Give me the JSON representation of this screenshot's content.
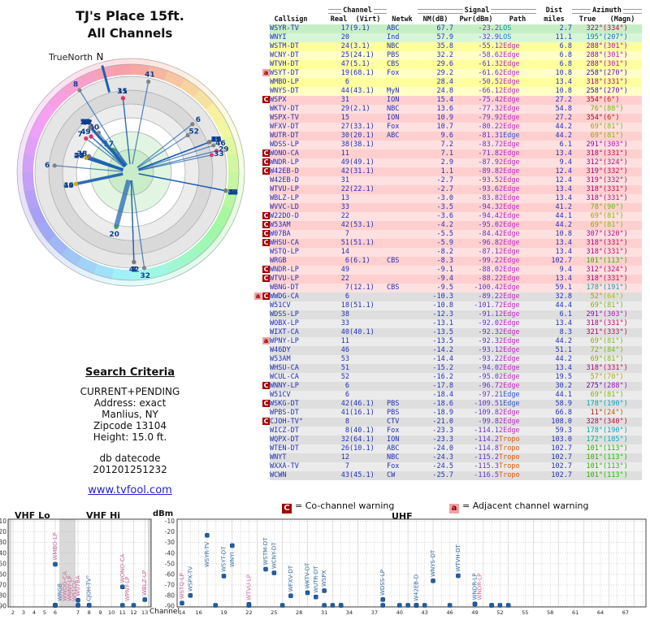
{
  "title": {
    "line1": "TJ's Place 15ft.",
    "line2": "All Channels"
  },
  "radar": {
    "true_north_label": "TrueNorth",
    "north_label": "N"
  },
  "search": {
    "heading": "Search Criteria",
    "lines": [
      "CURRENT+PENDING",
      "Address: exact",
      "Manlius, NY",
      "Zipcode 13104",
      "Height: 15.0 ft."
    ],
    "datecode_label": "db datecode",
    "datecode": "201201251232"
  },
  "link_text": "www.tvfool.com",
  "legend": {
    "co": {
      "symbol": "C",
      "text": "= Co-channel warning"
    },
    "adj": {
      "symbol": "a",
      "text": "= Adjacent channel warning"
    }
  },
  "table": {
    "groups": [
      "Channel",
      "Signal",
      "Dist",
      "Azimuth"
    ],
    "columns": [
      "Callsign",
      "Real",
      "(Virt)",
      "Netwk",
      "NM(dB)",
      "Pwr(dBm)",
      "Path",
      "miles",
      "True",
      "(Magn)"
    ]
  },
  "chart": {
    "labels": {
      "vhf_lo": "VHF Lo",
      "vhf_hi": "VHF Hi",
      "uhf": "UHF",
      "dbm": "dBm",
      "channel": "Channel"
    },
    "y_ticks": [
      -10,
      -20,
      -30,
      -40,
      -50,
      -60,
      -70,
      -80,
      -90
    ],
    "vhf_x_ticks": [
      2,
      3,
      4,
      5,
      6,
      7,
      8,
      9,
      10,
      11,
      12,
      13
    ],
    "uhf_x_ticks": [
      14,
      16,
      19,
      22,
      25,
      28,
      31,
      34,
      37,
      40,
      43,
      46,
      49,
      52,
      55,
      58,
      61,
      64,
      67
    ]
  },
  "colors": {
    "zones": {
      "green": [
        "#c6eec6",
        "#d8f5d8"
      ],
      "yellow": [
        "#ffff9e",
        "#ffffc6"
      ],
      "pink": [
        "#ffcfcf",
        "#ffe0e0"
      ],
      "gray": [
        "#dedede",
        "#ebebeb"
      ]
    },
    "zone_dots": {
      "green": "#2f9e44",
      "yellow": "#d4b106",
      "pink": "#d6336c",
      "gray": "#7a7a7a"
    },
    "path": {
      "LOS": "#0b87c4",
      "1Edge": "#2f54d6",
      "2Edge": "#c22bc2",
      "Tropo": "#e8590c"
    },
    "marker_co": "#a40000",
    "marker_adj": "#f2a1a1",
    "wedge": "#1d5fb0",
    "bar": "#1f5fa0",
    "callsign": "#2230b8",
    "value_blue": "#2230b8",
    "value_purple": "#6633cc"
  },
  "chart_data": {
    "type": [
      "polar-scatter",
      "scatter"
    ],
    "radar_plot": {
      "title": "TJ's Place 15ft. All Channels",
      "angle_field": "az",
      "radius_field": "dist",
      "radius_rings_miles": [
        2,
        5,
        10,
        20,
        40,
        80
      ],
      "label_field": "real"
    },
    "signal_plot": {
      "x_field": "real",
      "y_field": "pwr",
      "ylabel": "dBm",
      "xlabel": "Channel",
      "ylim": [
        -90,
        -10
      ],
      "panels": {
        "vhf": [
          2,
          13
        ],
        "uhf": [
          14,
          69
        ]
      }
    },
    "stations": [
      {
        "m": "",
        "call": "WSYR-TV",
        "real": 17,
        "virt": "(9.1)",
        "net": "ABC",
        "nm": "67.7",
        "pwr": "-23.2",
        "path": "LOS",
        "dist": "2.7",
        "az": 322,
        "mag": 334,
        "zone": "green"
      },
      {
        "m": "",
        "call": "WNYI",
        "real": 20,
        "virt": "",
        "net": "Ind",
        "nm": "57.9",
        "pwr": "-32.9",
        "path": "LOS",
        "dist": "11.1",
        "az": 195,
        "mag": 207,
        "zone": "green"
      },
      {
        "m": "",
        "call": "WSTM-DT",
        "real": 24,
        "virt": "(3.1)",
        "net": "NBC",
        "nm": "35.8",
        "pwr": "-55.1",
        "path": "2Edge",
        "dist": "6.8",
        "az": 288,
        "mag": 301,
        "zone": "yellow"
      },
      {
        "m": "",
        "call": "WCNY-DT",
        "real": 25,
        "virt": "(24.1)",
        "net": "PBS",
        "nm": "32.2",
        "pwr": "-58.6",
        "path": "2Edge",
        "dist": "6.8",
        "az": 288,
        "mag": 301,
        "zone": "yellow"
      },
      {
        "m": "",
        "call": "WTVH-DT",
        "real": 47,
        "virt": "(5.1)",
        "net": "CBS",
        "nm": "29.6",
        "pwr": "-61.3",
        "path": "2Edge",
        "dist": "6.8",
        "az": 288,
        "mag": 301,
        "zone": "yellow"
      },
      {
        "m": "a",
        "call": "WSYT-DT",
        "real": 19,
        "virt": "(68.1)",
        "net": "Fox",
        "nm": "29.2",
        "pwr": "-61.6",
        "path": "2Edge",
        "dist": "10.8",
        "az": 258,
        "mag": 270,
        "zone": "yellow"
      },
      {
        "m": "",
        "call": "WMBO-LP",
        "real": 6,
        "virt": "",
        "net": "",
        "nm": "28.4",
        "pwr": "-50.5",
        "path": "2Edge",
        "dist": "13.4",
        "az": 318,
        "mag": 331,
        "zone": "yellow"
      },
      {
        "m": "",
        "call": "WNYS-DT",
        "real": 44,
        "virt": "(43.1)",
        "net": "MyN",
        "nm": "24.8",
        "pwr": "-66.1",
        "path": "2Edge",
        "dist": "10.8",
        "az": 258,
        "mag": 270,
        "zone": "yellow"
      },
      {
        "m": "C",
        "call": "WSPX",
        "real": 31,
        "virt": "",
        "net": "ION",
        "nm": "15.4",
        "pwr": "-75.4",
        "path": "2Edge",
        "dist": "27.2",
        "az": 354,
        "mag": 6,
        "zone": "pink"
      },
      {
        "m": "",
        "call": "WKTV-DT",
        "real": 29,
        "virt": "(2.1)",
        "net": "NBC",
        "nm": "13.6",
        "pwr": "-77.3",
        "path": "2Edge",
        "dist": "54.8",
        "az": 76,
        "mag": 88,
        "zone": "pink"
      },
      {
        "m": "",
        "call": "WSPX-TV",
        "real": 15,
        "virt": "",
        "net": "ION",
        "nm": "10.9",
        "pwr": "-79.9",
        "path": "2Edge",
        "dist": "27.2",
        "az": 354,
        "mag": 6,
        "zone": "pink"
      },
      {
        "m": "",
        "call": "WFXV-DT",
        "real": 27,
        "virt": "(33.1)",
        "net": "Fox",
        "nm": "10.7",
        "pwr": "-80.2",
        "path": "2Edge",
        "dist": "44.2",
        "az": 69,
        "mag": 81,
        "zone": "pink"
      },
      {
        "m": "",
        "call": "WUTR-DT",
        "real": 30,
        "virt": "(20.1)",
        "net": "ABC",
        "nm": "9.6",
        "pwr": "-81.3",
        "path": "1Edge",
        "dist": "44.2",
        "az": 69,
        "mag": 81,
        "zone": "pink"
      },
      {
        "m": "",
        "call": "WDSS-LP",
        "real": 38,
        "virt": "(38.1)",
        "net": "",
        "nm": "7.2",
        "pwr": "-83.7",
        "path": "2Edge",
        "dist": "6.1",
        "az": 291,
        "mag": 303,
        "zone": "pink"
      },
      {
        "m": "C",
        "call": "WONO-CA",
        "real": 11,
        "virt": "",
        "net": "",
        "nm": "7.1",
        "pwr": "-71.8",
        "path": "2Edge",
        "dist": "13.4",
        "az": 318,
        "mag": 331,
        "zone": "pink"
      },
      {
        "m": "C",
        "call": "WNDR-LP",
        "real": 49,
        "virt": "(49.1)",
        "net": "",
        "nm": "2.9",
        "pwr": "-87.9",
        "path": "2Edge",
        "dist": "9.4",
        "az": 312,
        "mag": 324,
        "zone": "pink"
      },
      {
        "m": "C",
        "call": "W42EB-D",
        "real": 42,
        "virt": "(31.1)",
        "net": "",
        "nm": "1.1",
        "pwr": "-89.8",
        "path": "2Edge",
        "dist": "12.4",
        "az": 319,
        "mag": 332,
        "zone": "pink"
      },
      {
        "m": "",
        "call": "W42EB-D",
        "real": 31,
        "virt": "",
        "net": "",
        "nm": "-2.7",
        "pwr": "-93.5",
        "path": "2Edge",
        "dist": "12.4",
        "az": 319,
        "mag": 332,
        "zone": "pink"
      },
      {
        "m": "",
        "call": "WTVU-LP",
        "real": 22,
        "virt": "(22.1)",
        "net": "",
        "nm": "-2.7",
        "pwr": "-93.6",
        "path": "2Edge",
        "dist": "13.4",
        "az": 318,
        "mag": 331,
        "zone": "pink"
      },
      {
        "m": "",
        "call": "WBLZ-LP",
        "real": 13,
        "virt": "",
        "net": "",
        "nm": "-3.0",
        "pwr": "-83.8",
        "path": "2Edge",
        "dist": "13.4",
        "az": 318,
        "mag": 331,
        "zone": "pink"
      },
      {
        "m": "",
        "call": "WVVC-LD",
        "real": 33,
        "virt": "",
        "net": "",
        "nm": "-3.5",
        "pwr": "-94.3",
        "path": "2Edge",
        "dist": "41.2",
        "az": 78,
        "mag": 90,
        "zone": "pink"
      },
      {
        "m": "C",
        "call": "W22DO-D",
        "real": 22,
        "virt": "",
        "net": "",
        "nm": "-3.6",
        "pwr": "-94.4",
        "path": "2Edge",
        "dist": "44.1",
        "az": 69,
        "mag": 81,
        "zone": "pink"
      },
      {
        "m": "C",
        "call": "W53AM",
        "real": 42,
        "virt": "(53.1)",
        "net": "",
        "nm": "-4.2",
        "pwr": "-95.0",
        "path": "2Edge",
        "dist": "44.2",
        "az": 69,
        "mag": 81,
        "zone": "pink"
      },
      {
        "m": "C",
        "call": "W07BA",
        "real": 7,
        "virt": "",
        "net": "",
        "nm": "-5.5",
        "pwr": "-84.4",
        "path": "2Edge",
        "dist": "10.8",
        "az": 307,
        "mag": 320,
        "zone": "pink"
      },
      {
        "m": "C",
        "call": "WHSU-CA",
        "real": 51,
        "virt": "(51.1)",
        "net": "",
        "nm": "-5.9",
        "pwr": "-96.8",
        "path": "2Edge",
        "dist": "13.4",
        "az": 318,
        "mag": 331,
        "zone": "pink"
      },
      {
        "m": "",
        "call": "WSTQ-LP",
        "real": 14,
        "virt": "",
        "net": "",
        "nm": "-8.2",
        "pwr": "-87.1",
        "path": "2Edge",
        "dist": "13.4",
        "az": 318,
        "mag": 331,
        "zone": "pink"
      },
      {
        "m": "",
        "call": "WRGB",
        "real": 6,
        "virt": "(6.1)",
        "net": "CBS",
        "nm": "-8.3",
        "pwr": "-99.2",
        "path": "2Edge",
        "dist": "102.7",
        "az": 101,
        "mag": 113,
        "zone": "pink"
      },
      {
        "m": "C",
        "call": "WNDR-LP",
        "real": 49,
        "virt": "",
        "net": "",
        "nm": "-9.1",
        "pwr": "-88.0",
        "path": "2Edge",
        "dist": "9.4",
        "az": 312,
        "mag": 324,
        "zone": "pink"
      },
      {
        "m": "C",
        "call": "WTVU-LP",
        "real": 22,
        "virt": "",
        "net": "",
        "nm": "-9.4",
        "pwr": "-88.2",
        "path": "2Edge",
        "dist": "13.4",
        "az": 318,
        "mag": 331,
        "zone": "pink"
      },
      {
        "m": "",
        "call": "WBNG-DT",
        "real": 7,
        "virt": "(12.1)",
        "net": "CBS",
        "nm": "-9.5",
        "pwr": "-100.4",
        "path": "2Edge",
        "dist": "59.1",
        "az": 178,
        "mag": 191,
        "zone": "pink"
      },
      {
        "m": "aC",
        "call": "WWDG-CA",
        "real": 6,
        "virt": "",
        "net": "",
        "nm": "-10.3",
        "pwr": "-89.2",
        "path": "2Edge",
        "dist": "32.8",
        "az": 52,
        "mag": 64,
        "zone": "gray"
      },
      {
        "m": "",
        "call": "W51CV",
        "real": 18,
        "virt": "(51.1)",
        "net": "",
        "nm": "-10.8",
        "pwr": "-101.7",
        "path": "2Edge",
        "dist": "44.4",
        "az": 69,
        "mag": 81,
        "zone": "gray"
      },
      {
        "m": "",
        "call": "WDSS-LP",
        "real": 38,
        "virt": "",
        "net": "",
        "nm": "-12.3",
        "pwr": "-91.1",
        "path": "2Edge",
        "dist": "6.1",
        "az": 291,
        "mag": 303,
        "zone": "gray"
      },
      {
        "m": "",
        "call": "WOBX-LP",
        "real": 33,
        "virt": "",
        "net": "",
        "nm": "-13.1",
        "pwr": "-92.0",
        "path": "2Edge",
        "dist": "13.4",
        "az": 318,
        "mag": 331,
        "zone": "gray"
      },
      {
        "m": "",
        "call": "WIXT-CA",
        "real": 40,
        "virt": "(40.1)",
        "net": "",
        "nm": "-13.5",
        "pwr": "-92.3",
        "path": "2Edge",
        "dist": "8.3",
        "az": 321,
        "mag": 333,
        "zone": "gray"
      },
      {
        "m": "a",
        "call": "WPNY-LP",
        "real": 11,
        "virt": "",
        "net": "",
        "nm": "-13.5",
        "pwr": "-92.3",
        "path": "2Edge",
        "dist": "44.2",
        "az": 69,
        "mag": 81,
        "zone": "gray"
      },
      {
        "m": "",
        "call": "W46DY",
        "real": 46,
        "virt": "",
        "net": "",
        "nm": "-14.2",
        "pwr": "-93.1",
        "path": "2Edge",
        "dist": "51.1",
        "az": 72,
        "mag": 84,
        "zone": "gray"
      },
      {
        "m": "",
        "call": "W53AM",
        "real": 53,
        "virt": "",
        "net": "",
        "nm": "-14.4",
        "pwr": "-93.2",
        "path": "2Edge",
        "dist": "44.2",
        "az": 69,
        "mag": 81,
        "zone": "gray"
      },
      {
        "m": "",
        "call": "WHSU-CA",
        "real": 51,
        "virt": "",
        "net": "",
        "nm": "-15.2",
        "pwr": "-94.0",
        "path": "2Edge",
        "dist": "13.4",
        "az": 318,
        "mag": 331,
        "zone": "gray"
      },
      {
        "m": "",
        "call": "WCUL-CA",
        "real": 52,
        "virt": "",
        "net": "",
        "nm": "-16.2",
        "pwr": "-95.0",
        "path": "2Edge",
        "dist": "19.5",
        "az": 57,
        "mag": 70,
        "zone": "gray"
      },
      {
        "m": "C",
        "call": "WNNY-LP",
        "real": 6,
        "virt": "",
        "net": "",
        "nm": "-17.8",
        "pwr": "-96.7",
        "path": "2Edge",
        "dist": "30.2",
        "az": 275,
        "mag": 288,
        "zone": "gray"
      },
      {
        "m": "",
        "call": "W51CV",
        "real": 6,
        "virt": "",
        "net": "",
        "nm": "-18.4",
        "pwr": "-97.2",
        "path": "1Edge",
        "dist": "44.1",
        "az": 69,
        "mag": 81,
        "zone": "gray"
      },
      {
        "m": "C",
        "call": "WSKG-DT",
        "real": 42,
        "virt": "(46.1)",
        "net": "PBS",
        "nm": "-18.6",
        "pwr": "-109.5",
        "path": "1Edge",
        "dist": "58.9",
        "az": 178,
        "mag": 190,
        "zone": "gray"
      },
      {
        "m": "",
        "call": "WPBS-DT",
        "real": 41,
        "virt": "(16.1)",
        "net": "PBS",
        "nm": "-18.9",
        "pwr": "-109.8",
        "path": "2Edge",
        "dist": "66.8",
        "az": 11,
        "mag": 24,
        "zone": "gray"
      },
      {
        "m": "C",
        "call": "CJOH-TV°",
        "real": 8,
        "virt": "",
        "net": "CTV",
        "nm": "-21.0",
        "pwr": "-99.8",
        "path": "2Edge",
        "dist": "108.0",
        "az": 328,
        "mag": 340,
        "zone": "gray"
      },
      {
        "m": "",
        "call": "WICZ-DT",
        "real": 8,
        "virt": "(40.1)",
        "net": "Fox",
        "nm": "-23.3",
        "pwr": "-114.1",
        "path": "2Edge",
        "dist": "59.3",
        "az": 178,
        "mag": 190,
        "zone": "gray"
      },
      {
        "m": "",
        "call": "WQPX-DT",
        "real": 32,
        "virt": "(64.1)",
        "net": "ION",
        "nm": "-23.3",
        "pwr": "-114.2",
        "path": "Tropo",
        "dist": "103.0",
        "az": 172,
        "mag": 185,
        "zone": "gray"
      },
      {
        "m": "",
        "call": "WTEN-DT",
        "real": 26,
        "virt": "(10.1)",
        "net": "ABC",
        "nm": "-24.0",
        "pwr": "-114.8",
        "path": "Tropo",
        "dist": "102.7",
        "az": 101,
        "mag": 113,
        "zone": "gray"
      },
      {
        "m": "",
        "call": "WNYT",
        "real": 12,
        "virt": "",
        "net": "NBC",
        "nm": "-24.3",
        "pwr": "-115.2",
        "path": "Tropo",
        "dist": "102.7",
        "az": 101,
        "mag": 113,
        "zone": "gray"
      },
      {
        "m": "",
        "call": "WXXA-TV",
        "real": 7,
        "virt": "",
        "net": "Fox",
        "nm": "-24.5",
        "pwr": "-115.3",
        "path": "Tropo",
        "dist": "102.7",
        "az": 101,
        "mag": 113,
        "zone": "gray"
      },
      {
        "m": "",
        "call": "WCWN",
        "real": 43,
        "virt": "(45.1)",
        "net": "CW",
        "nm": "-25.7",
        "pwr": "-116.5",
        "path": "Tropo",
        "dist": "102.7",
        "az": 101,
        "mag": 113,
        "zone": "gray"
      }
    ]
  }
}
